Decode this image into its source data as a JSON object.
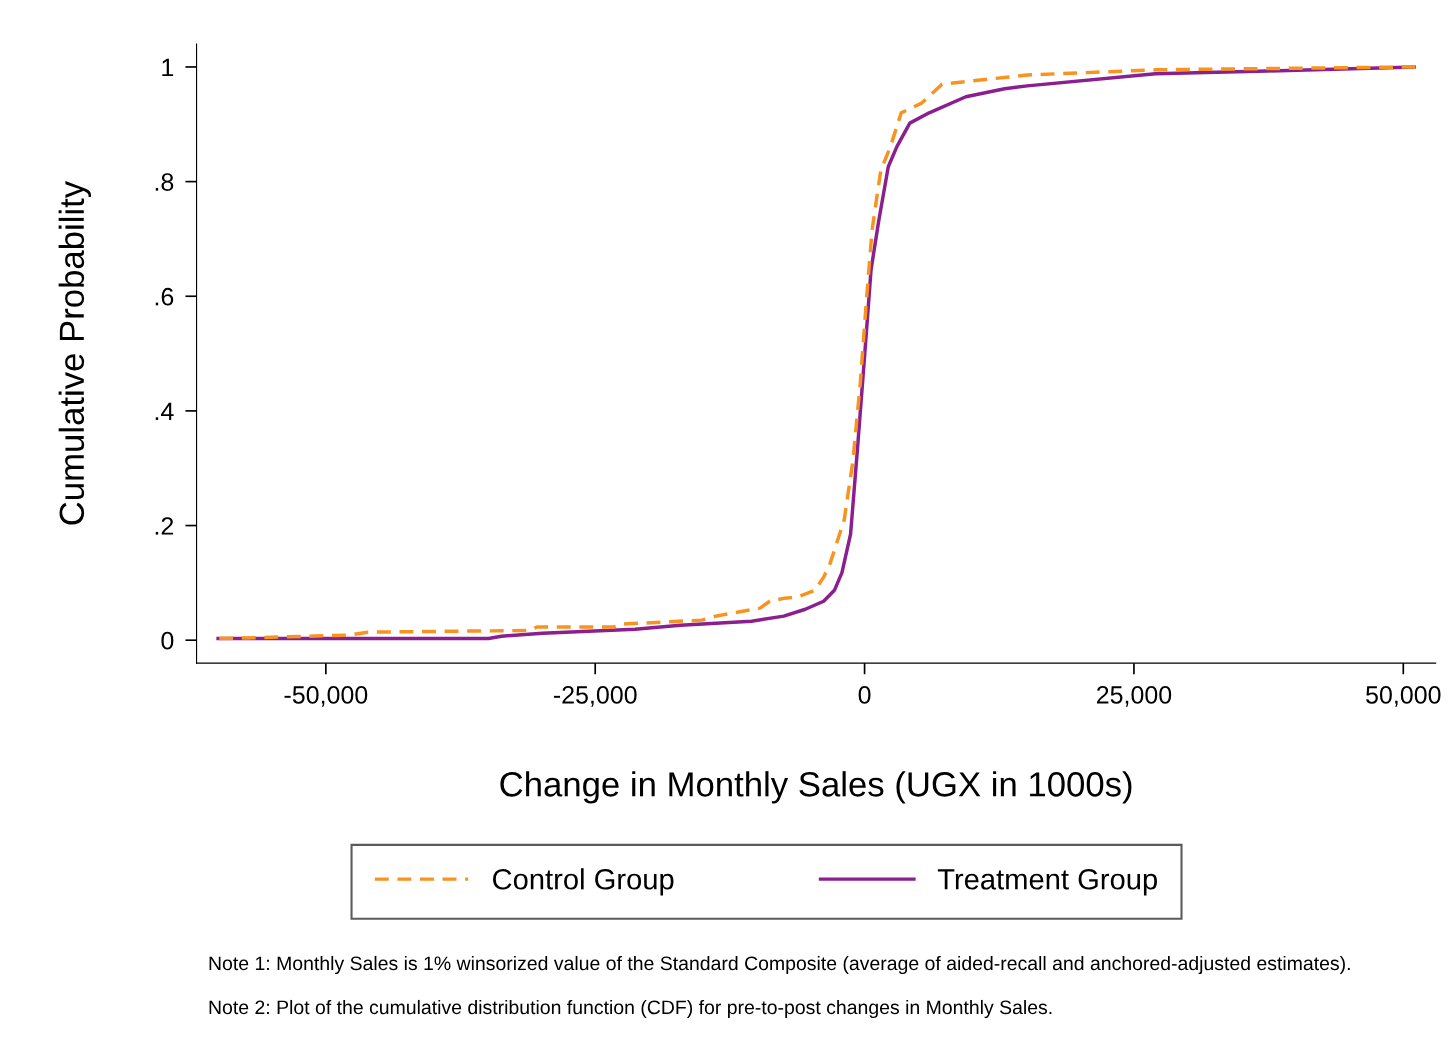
{
  "chart_data": {
    "type": "line",
    "xlabel": "Change in Monthly Sales (UGX in 1000s)",
    "ylabel": "Cumulative Probability",
    "xlim": [
      -62000,
      53000
    ],
    "ylim": [
      -0.04,
      1.04
    ],
    "xticks": [
      {
        "value": -50000,
        "label": "-50,000"
      },
      {
        "value": -25000,
        "label": "-25,000"
      },
      0,
      {
        "value": 25000,
        "label": "25,000"
      },
      {
        "value": 50000,
        "label": "50,000"
      }
    ],
    "yticks": [
      0,
      {
        "value": 0.2,
        "label": ".2"
      },
      {
        "value": 0.4,
        "label": ".4"
      },
      {
        "value": 0.6,
        "label": ".6"
      },
      {
        "value": 0.8,
        "label": ".8"
      },
      1
    ],
    "grid": false,
    "legend": "bottom",
    "series": [
      {
        "name": "Control Group",
        "color": "#f7931e",
        "line_style": "dashed",
        "x": [
          -59900,
          -57300,
          -47800,
          -46100,
          -31200,
          -30400,
          -23300,
          -22500,
          -15100,
          -13800,
          -9700,
          -8800,
          -7500,
          -6300,
          -4600,
          -3800,
          -3200,
          -1900,
          -1100,
          -400,
          200,
          700,
          1500,
          2400,
          3400,
          5300,
          7200,
          15100,
          27000,
          51100
        ],
        "values": [
          0.003,
          0.004,
          0.009,
          0.014,
          0.017,
          0.023,
          0.023,
          0.028,
          0.035,
          0.042,
          0.056,
          0.068,
          0.073,
          0.075,
          0.087,
          0.11,
          0.134,
          0.209,
          0.31,
          0.448,
          0.6,
          0.716,
          0.819,
          0.861,
          0.92,
          0.937,
          0.97,
          0.986,
          0.995,
          1.0
        ]
      },
      {
        "name": "Treatment Group",
        "color": "#8b1f8f",
        "line_style": "solid",
        "x": [
          -60000,
          -34900,
          -33700,
          -29900,
          -21300,
          -17100,
          -10500,
          -7500,
          -5500,
          -3800,
          -2800,
          -2100,
          -1300,
          -700,
          0,
          600,
          1300,
          2200,
          3000,
          4200,
          6000,
          9400,
          13000,
          15100,
          27000,
          37400,
          51000
        ],
        "values": [
          0.003,
          0.003,
          0.007,
          0.012,
          0.019,
          0.026,
          0.033,
          0.042,
          0.054,
          0.068,
          0.087,
          0.118,
          0.185,
          0.324,
          0.495,
          0.646,
          0.73,
          0.826,
          0.861,
          0.902,
          0.92,
          0.948,
          0.962,
          0.967,
          0.988,
          0.993,
          1.0
        ]
      }
    ],
    "annotations": [
      "Note 1: Monthly Sales is 1% winsorized value of the Standard Composite (average of aided-recall and anchored-adjusted estimates).",
      "Note 2: Plot of the cumulative distribution function (CDF) for pre-to-post changes in Monthly Sales."
    ]
  }
}
